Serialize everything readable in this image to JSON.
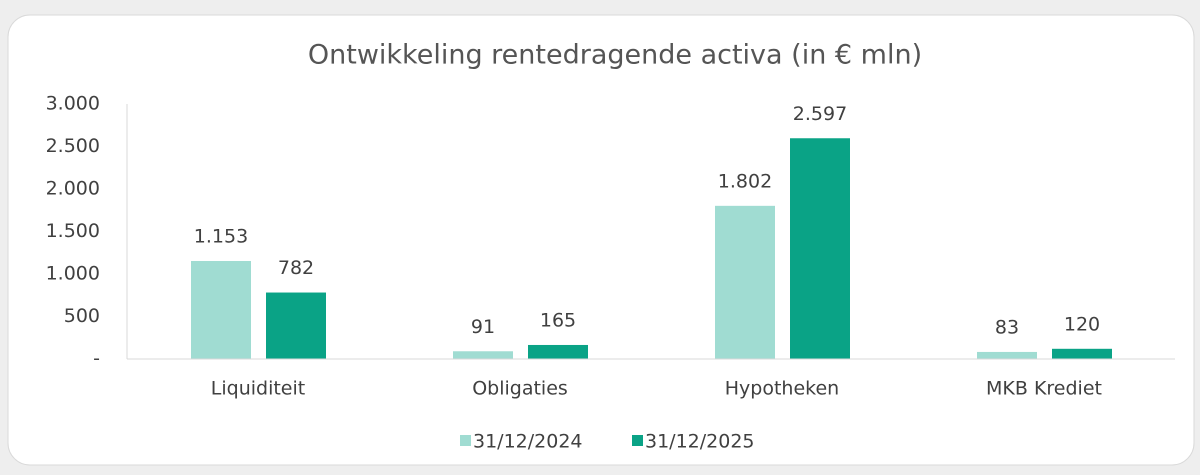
{
  "chart_data": {
    "type": "bar",
    "title": "Ontwikkeling rentedragende activa (in € mln)",
    "categories": [
      "Liquiditeit",
      "Obligaties",
      "Hypotheken",
      "MKB Krediet"
    ],
    "series": [
      {
        "name": "31/12/2024",
        "color": "#a0dcd2",
        "values": [
          1153,
          91,
          1802,
          83
        ],
        "value_labels": [
          "1.153",
          "91",
          "1.802",
          "83"
        ]
      },
      {
        "name": "31/12/2025",
        "color": "#0aa386",
        "values": [
          782,
          165,
          2597,
          120
        ],
        "value_labels": [
          "782",
          "165",
          "2.597",
          "120"
        ]
      }
    ],
    "ylim": [
      0,
      3000
    ],
    "yticks": [
      {
        "value": 0,
        "label": "-"
      },
      500,
      {
        "value": 1000,
        "label": "1.000"
      },
      {
        "value": 1500,
        "label": "1.500"
      },
      {
        "value": 2000,
        "label": "2.000"
      },
      {
        "value": 2500,
        "label": "2.500"
      },
      {
        "value": 3000,
        "label": "3.000"
      }
    ],
    "legend": "bottom"
  }
}
